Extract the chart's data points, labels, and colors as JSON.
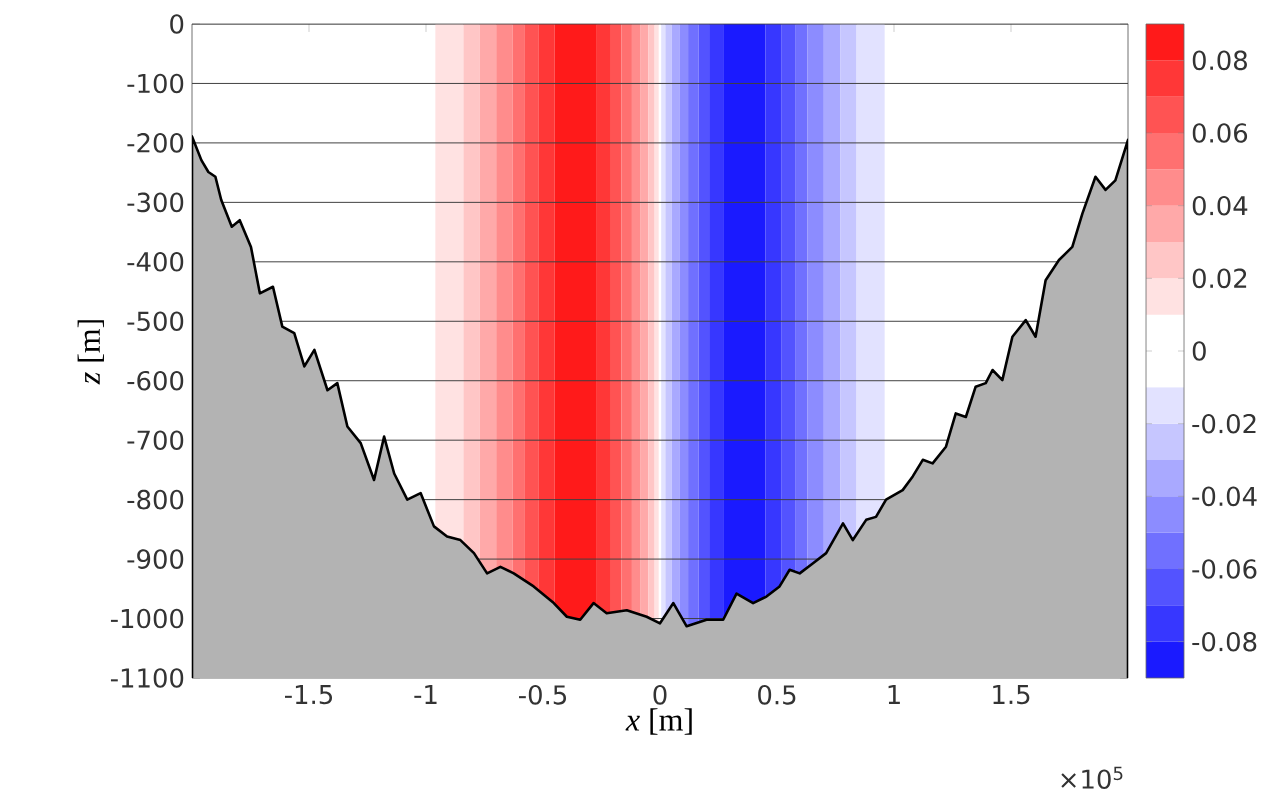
{
  "chart_data": {
    "type": "area",
    "xlabel": "*x* [m]",
    "ylabel": "*z* [m]",
    "xlim": [
      -2,
      2
    ],
    "ylim": [
      -1100,
      0
    ],
    "xticks": [
      -1.5,
      -1,
      -0.5,
      0,
      0.5,
      1,
      1.5
    ],
    "yticks": [
      0,
      -100,
      -200,
      -300,
      -400,
      -500,
      -600,
      -700,
      -800,
      -900,
      -1000,
      -1100
    ],
    "grid": "y",
    "clim": [
      -0.09,
      0.09
    ],
    "cticks": [
      -0.08,
      -0.06,
      -0.04,
      -0.02,
      0,
      0.02,
      0.04,
      0.06,
      0.08
    ],
    "annotations": [
      "×10$^{5}$"
    ],
    "series": [
      {
        "color": "#b3b3b3",
        "x": [
          -2,
          -1.96,
          -1.93,
          -1.9,
          -1.875,
          -1.83,
          -1.796,
          -1.748,
          -1.71,
          -1.654,
          -1.614,
          -1.563,
          -1.52,
          -1.477,
          -1.421,
          -1.379,
          -1.336,
          -1.279,
          -1.222,
          -1.179,
          -1.136,
          -1.08,
          -1.023,
          -0.966,
          -0.91,
          -0.853,
          -0.795,
          -0.739,
          -0.682,
          -0.625,
          -0.54,
          -0.454,
          -0.398,
          -0.341,
          -0.284,
          -0.228,
          -0.142,
          -0.057,
          0,
          0.057,
          0.114,
          0.199,
          0.27,
          0.327,
          0.398,
          0.455,
          0.511,
          0.554,
          0.597,
          0.654,
          0.71,
          0.782,
          0.824,
          0.881,
          0.923,
          0.966,
          1.037,
          1.08,
          1.123,
          1.165,
          1.222,
          1.264,
          1.307,
          1.349,
          1.392,
          1.421,
          1.463,
          1.506,
          1.563,
          1.605,
          1.648,
          1.705,
          1.762,
          1.805,
          1.861,
          1.904,
          1.946,
          2
        ],
        "values": [
          -189,
          -229,
          -249,
          -257,
          -296,
          -341,
          -330,
          -375,
          -453,
          -442,
          -509,
          -520,
          -576,
          -548,
          -616,
          -604,
          -677,
          -705,
          -767,
          -694,
          -756,
          -800,
          -789,
          -845,
          -862,
          -868,
          -890,
          -924,
          -913,
          -924,
          -946,
          -974,
          -997,
          -1002,
          -974,
          -991,
          -986,
          -997,
          -1008,
          -974,
          -1013,
          -1002,
          -1002,
          -958,
          -974,
          -963,
          -946,
          -918,
          -924,
          -907,
          -890,
          -840,
          -868,
          -834,
          -829,
          -800,
          -784,
          -761,
          -733,
          -739,
          -711,
          -655,
          -661,
          -610,
          -604,
          -582,
          -599,
          -526,
          -498,
          -526,
          -431,
          -397,
          -375,
          -319,
          -257,
          -279,
          -263,
          -195
        ]
      }
    ],
    "bands": [
      {
        "axis": "x",
        "from": -0.96,
        "to": -0.84,
        "color": "#ffe2e2"
      },
      {
        "axis": "x",
        "from": -0.84,
        "to": -0.77,
        "color": "#ffc6c6"
      },
      {
        "axis": "x",
        "from": -0.77,
        "to": -0.7,
        "color": "#ffa9a9"
      },
      {
        "axis": "x",
        "from": -0.7,
        "to": -0.63,
        "color": "#ff8c8c"
      },
      {
        "axis": "x",
        "from": -0.63,
        "to": -0.58,
        "color": "#ff7070"
      },
      {
        "axis": "x",
        "from": -0.58,
        "to": -0.52,
        "color": "#ff5353"
      },
      {
        "axis": "x",
        "from": -0.52,
        "to": -0.45,
        "color": "#ff3737"
      },
      {
        "axis": "x",
        "from": -0.45,
        "to": -0.27,
        "color": "#ff1a1a"
      },
      {
        "axis": "x",
        "from": -0.27,
        "to": -0.21,
        "color": "#ff3737"
      },
      {
        "axis": "x",
        "from": -0.21,
        "to": -0.165,
        "color": "#ff5353"
      },
      {
        "axis": "x",
        "from": -0.165,
        "to": -0.12,
        "color": "#ff7070"
      },
      {
        "axis": "x",
        "from": -0.12,
        "to": -0.085,
        "color": "#ff8c8c"
      },
      {
        "axis": "x",
        "from": -0.085,
        "to": -0.05,
        "color": "#ffa9a9"
      },
      {
        "axis": "x",
        "from": -0.05,
        "to": -0.023,
        "color": "#ffc6c6"
      },
      {
        "axis": "x",
        "from": -0.023,
        "to": -0.005,
        "color": "#ffe2e2"
      },
      {
        "axis": "x",
        "from": -0.005,
        "to": 0.005,
        "color": "#ffffff"
      },
      {
        "axis": "x",
        "from": 0.005,
        "to": 0.023,
        "color": "#e2e2ff"
      },
      {
        "axis": "x",
        "from": 0.023,
        "to": 0.05,
        "color": "#c6c6ff"
      },
      {
        "axis": "x",
        "from": 0.05,
        "to": 0.085,
        "color": "#a9a9ff"
      },
      {
        "axis": "x",
        "from": 0.085,
        "to": 0.12,
        "color": "#8c8cff"
      },
      {
        "axis": "x",
        "from": 0.12,
        "to": 0.165,
        "color": "#7070ff"
      },
      {
        "axis": "x",
        "from": 0.165,
        "to": 0.21,
        "color": "#5353ff"
      },
      {
        "axis": "x",
        "from": 0.21,
        "to": 0.27,
        "color": "#3737ff"
      },
      {
        "axis": "x",
        "from": 0.27,
        "to": 0.45,
        "color": "#1a1aff"
      },
      {
        "axis": "x",
        "from": 0.45,
        "to": 0.52,
        "color": "#3737ff"
      },
      {
        "axis": "x",
        "from": 0.52,
        "to": 0.58,
        "color": "#5353ff"
      },
      {
        "axis": "x",
        "from": 0.58,
        "to": 0.63,
        "color": "#7070ff"
      },
      {
        "axis": "x",
        "from": 0.63,
        "to": 0.7,
        "color": "#8c8cff"
      },
      {
        "axis": "x",
        "from": 0.7,
        "to": 0.77,
        "color": "#a9a9ff"
      },
      {
        "axis": "x",
        "from": 0.77,
        "to": 0.84,
        "color": "#c6c6ff"
      },
      {
        "axis": "x",
        "from": 0.84,
        "to": 0.96,
        "color": "#e2e2ff"
      }
    ]
  }
}
